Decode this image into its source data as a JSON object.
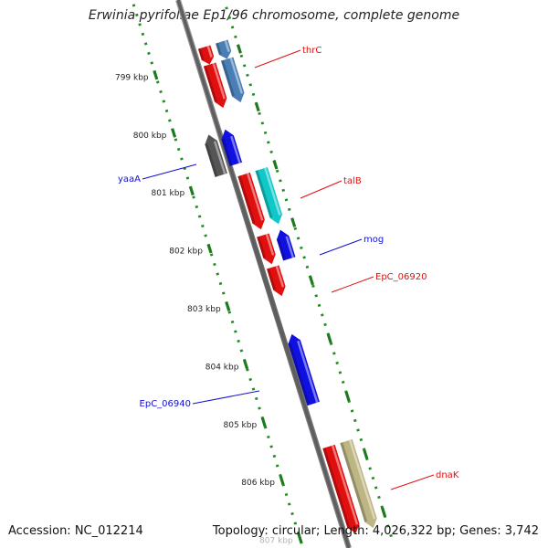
{
  "title": "Erwinia pyrifoliae Ep1/96 chromosome, complete genome",
  "footer": {
    "accession": "Accession: NC_012214",
    "topology": "Topology: circular; Length: 4,026,322 bp; Genes: 3,742"
  },
  "scale": {
    "unit": "kbp",
    "ticks": [
      "799 kbp",
      "800 kbp",
      "801 kbp",
      "802 kbp",
      "803 kbp",
      "804 kbp",
      "805 kbp",
      "806 kbp",
      "807 kbp"
    ]
  },
  "genes": [
    {
      "label": "",
      "strand": "+",
      "color": "#e01010",
      "start": -0.2,
      "end": 0.1
    },
    {
      "label": "",
      "strand": "+",
      "color": "#4a7fb5",
      "start": -0.2,
      "end": 0.1
    },
    {
      "label": "",
      "strand": "+",
      "color": "#e01010",
      "start": 0.1,
      "end": 0.85
    },
    {
      "label": "thrC",
      "strand": "+",
      "color": "#4a7fb5",
      "start": 0.1,
      "end": 0.85
    },
    {
      "label": "yaaA",
      "strand": "-",
      "color": "#555555",
      "start": 1.2,
      "end": 1.9
    },
    {
      "label": "",
      "strand": "-",
      "color": "#1010e0",
      "start": 1.2,
      "end": 1.8
    },
    {
      "label": "",
      "strand": "+",
      "color": "#e01010",
      "start": 2.0,
      "end": 2.95
    },
    {
      "label": "talB",
      "strand": "+",
      "color": "#10c8c8",
      "start": 2.0,
      "end": 2.95
    },
    {
      "label": "",
      "strand": "+",
      "color": "#e01010",
      "start": 3.05,
      "end": 3.55
    },
    {
      "label": "mog",
      "strand": "-",
      "color": "#1010e0",
      "start": 3.05,
      "end": 3.55
    },
    {
      "label": "EpC_06920",
      "strand": "+",
      "color": "#e01010",
      "start": 3.6,
      "end": 4.1
    },
    {
      "label": "EpC_06940",
      "strand": "-",
      "color": "#1010e0",
      "start": 4.75,
      "end": 5.95
    },
    {
      "label": "",
      "strand": "+",
      "color": "#e01010",
      "start": 6.7,
      "end": 8.2
    },
    {
      "label": "dnaK",
      "strand": "+",
      "color": "#bdb583",
      "start": 6.7,
      "end": 8.2
    }
  ]
}
